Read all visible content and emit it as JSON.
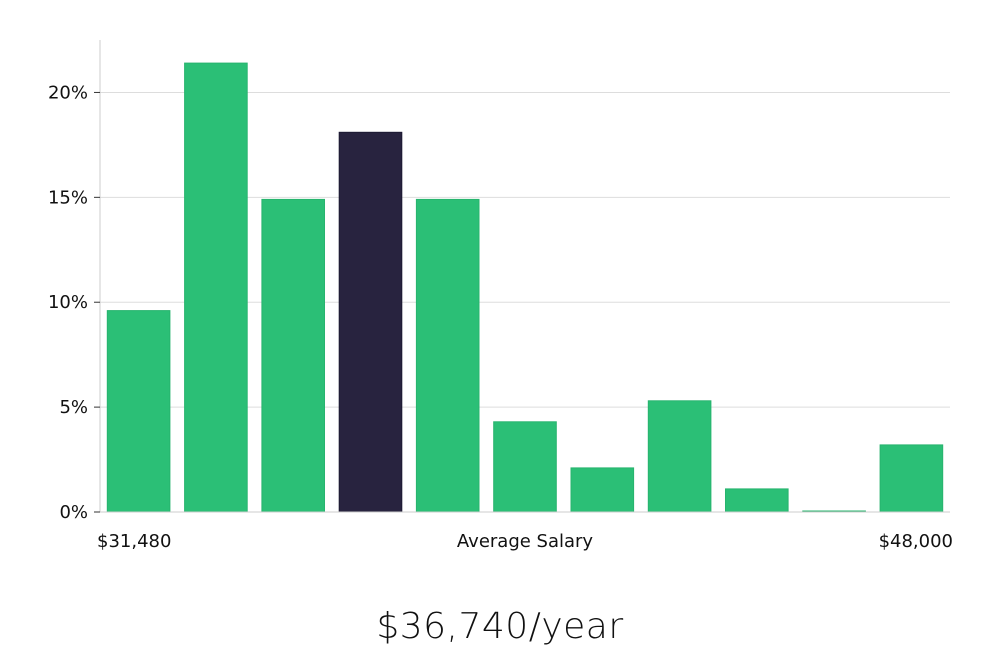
{
  "chart_data": {
    "type": "bar",
    "categories": [
      "1",
      "2",
      "3",
      "4",
      "5",
      "6",
      "7",
      "8",
      "9",
      "10",
      "11"
    ],
    "values": [
      9.6,
      21.4,
      14.9,
      18.1,
      14.9,
      4.3,
      2.1,
      5.3,
      1.1,
      0.05,
      3.2
    ],
    "highlight_index": 3,
    "ylim": [
      0,
      22.5
    ],
    "y_ticks": [
      0,
      5,
      10,
      15,
      20
    ],
    "y_tick_labels": [
      "0%",
      "5%",
      "10%",
      "15%",
      "20%"
    ],
    "x_start_label": "$31,480",
    "x_end_label": "$48,000",
    "xlabel": "Average Salary",
    "grid": true,
    "colors": {
      "bar": "#2bbf76",
      "highlight": "#28233f",
      "grid": "#dddddd",
      "axis": "#cccccc"
    }
  },
  "salary": "$36,740/year"
}
